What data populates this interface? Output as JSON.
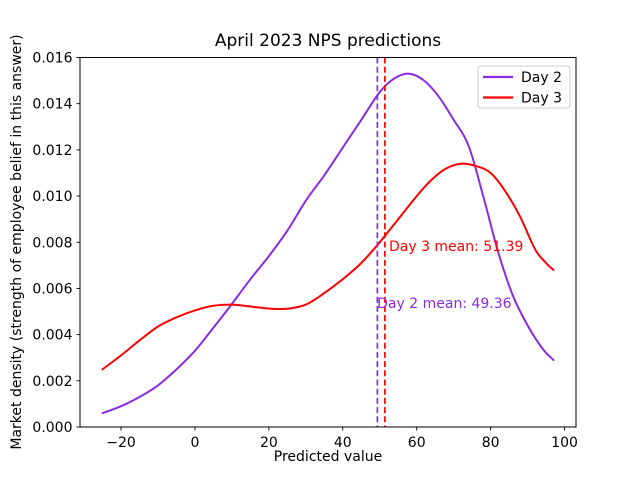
{
  "window": {
    "background": "#ffffff"
  },
  "chart_data": {
    "type": "line",
    "title": "April 2023 NPS predictions",
    "xlabel": "Predicted value",
    "ylabel": "Market density (strength of employee belief in this answer)",
    "xlim": [
      -31.1,
      103.1
    ],
    "ylim": [
      0,
      0.016
    ],
    "grid": false,
    "xticks": {
      "values": [
        -20,
        0,
        20,
        40,
        60,
        80,
        100
      ],
      "labels": [
        "−20",
        "0",
        "20",
        "40",
        "60",
        "80",
        "100"
      ]
    },
    "yticks": {
      "values": [
        0,
        0.002,
        0.004,
        0.006,
        0.008,
        0.01,
        0.012,
        0.014,
        0.016
      ],
      "labels": [
        "0.000",
        "0.002",
        "0.004",
        "0.006",
        "0.008",
        "0.010",
        "0.012",
        "0.014",
        "0.016"
      ]
    },
    "series": [
      {
        "name": "Day 2",
        "color": "#8a2be2",
        "style": "solid",
        "points": [
          [
            -25,
            0.0006
          ],
          [
            -20,
            0.0009
          ],
          [
            -15,
            0.0013
          ],
          [
            -10,
            0.0018
          ],
          [
            -5,
            0.0025
          ],
          [
            0,
            0.0033
          ],
          [
            5,
            0.0043
          ],
          [
            9.4,
            0.0052
          ],
          [
            15,
            0.0064
          ],
          [
            20,
            0.0074
          ],
          [
            25,
            0.0085
          ],
          [
            30,
            0.0098
          ],
          [
            35,
            0.0109
          ],
          [
            40,
            0.0121
          ],
          [
            45,
            0.0133
          ],
          [
            50,
            0.0145
          ],
          [
            54,
            0.0151
          ],
          [
            58,
            0.0153
          ],
          [
            62,
            0.015
          ],
          [
            66,
            0.0143
          ],
          [
            70,
            0.0133
          ],
          [
            74,
            0.0122
          ],
          [
            78,
            0.01
          ],
          [
            82,
            0.0076
          ],
          [
            86,
            0.0057
          ],
          [
            90,
            0.0044
          ],
          [
            94,
            0.0034
          ],
          [
            97,
            0.0029
          ]
        ]
      },
      {
        "name": "Day 3",
        "color": "#ff0000",
        "style": "solid",
        "points": [
          [
            -25,
            0.0025
          ],
          [
            -20,
            0.0031
          ],
          [
            -15,
            0.00375
          ],
          [
            -10,
            0.00435
          ],
          [
            -5,
            0.00475
          ],
          [
            0,
            0.00505
          ],
          [
            5,
            0.00525
          ],
          [
            10,
            0.0053
          ],
          [
            15,
            0.00522
          ],
          [
            20,
            0.00513
          ],
          [
            25,
            0.00512
          ],
          [
            30,
            0.0053
          ],
          [
            35,
            0.0058
          ],
          [
            40,
            0.0064
          ],
          [
            45,
            0.0071
          ],
          [
            50,
            0.008
          ],
          [
            55,
            0.009
          ],
          [
            60,
            0.01
          ],
          [
            64,
            0.0107
          ],
          [
            68,
            0.0112
          ],
          [
            72,
            0.0114
          ],
          [
            76,
            0.0113
          ],
          [
            80,
            0.011
          ],
          [
            84,
            0.0102
          ],
          [
            88,
            0.0091
          ],
          [
            92,
            0.0077
          ],
          [
            95,
            0.0071
          ],
          [
            97,
            0.0068
          ]
        ]
      }
    ],
    "mean_lines": [
      {
        "name": "Day 2 mean",
        "value": 49.36,
        "color": "#8a2be2",
        "style": "dashed"
      },
      {
        "name": "Day 3 mean",
        "value": 51.39,
        "color": "#ff0000",
        "style": "dashed"
      }
    ],
    "annotations": [
      {
        "text": "Day 3 mean: 51.39",
        "color": "#ff0000",
        "x": 52.5,
        "y": 0.00784
      },
      {
        "text": "Day 2 mean: 49.36",
        "color": "#8a2be2",
        "x": 49.3,
        "y": 0.00536
      }
    ],
    "legend": {
      "position": "upper right",
      "entries": [
        {
          "label": "Day 2",
          "color": "#8a2be2"
        },
        {
          "label": "Day 3",
          "color": "#ff0000"
        }
      ]
    }
  }
}
